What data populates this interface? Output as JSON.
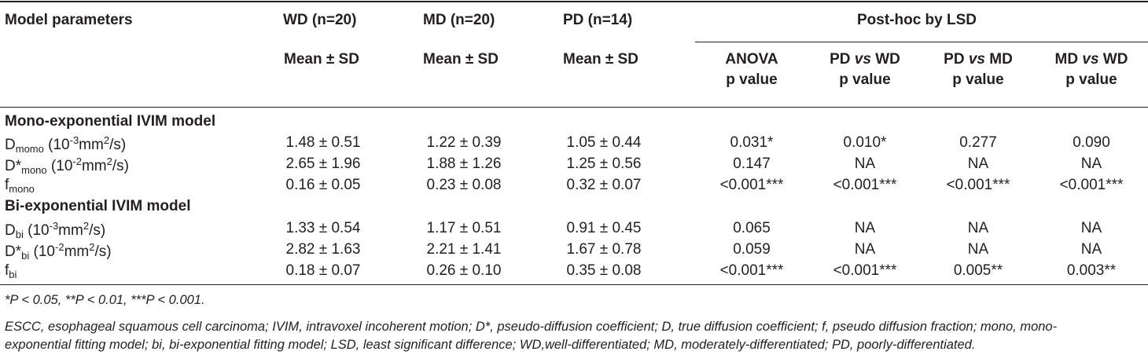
{
  "header": {
    "col0": "Model parameters",
    "wd": "WD (n=20)",
    "md": "MD (n=20)",
    "pd": "PD (n=14)",
    "posthoc": "Post-hoc by LSD",
    "mean_sd": "Mean ± SD",
    "anova_line1": "ANOVA",
    "anova_line2": "p value",
    "pd_wd_a": "PD ",
    "pd_wd_vs": "vs",
    "pd_wd_b": " WD",
    "pd_md_a": "PD ",
    "pd_md_vs": "vs",
    "pd_md_b": " MD",
    "md_wd_a": "MD ",
    "md_wd_vs": "vs",
    "md_wd_b": " WD",
    "p_value": "p value"
  },
  "sections": {
    "mono": "Mono-exponential IVIM model",
    "bi": "Bi-exponential IVIM model"
  },
  "labels": {
    "dmono_base": "D",
    "dmono_sub": "momo",
    "dmono_unit_a": " (10",
    "dmono_unit_sup": "-3",
    "dmono_unit_b": "mm",
    "dmono_unit_sup2": "2",
    "dmono_unit_c": "/s)",
    "dstarmono_base": "D*",
    "dstarmono_sub": "mono",
    "dstarmono_unit_a": " (10",
    "dstarmono_unit_sup": "-2",
    "dstarmono_unit_b": "mm",
    "dstarmono_unit_sup2": "2",
    "dstarmono_unit_c": "/s)",
    "fmono_base": "f",
    "fmono_sub": "mono",
    "dbi_base": "D",
    "dbi_sub": "bi",
    "dbi_unit_a": " (10",
    "dbi_unit_sup": "-3",
    "dbi_unit_b": "mm",
    "dbi_unit_sup2": "2",
    "dbi_unit_c": "/s)",
    "dstarbi_base": "D*",
    "dstarbi_sub": "bi",
    "dstarbi_unit_a": " (10",
    "dstarbi_unit_sup": "-2",
    "dstarbi_unit_b": "mm",
    "dstarbi_unit_sup2": "2",
    "dstarbi_unit_c": "/s)",
    "fbi_base": "f",
    "fbi_sub": "bi"
  },
  "rows": [
    [
      "1.48 ± 0.51",
      "1.22 ± 0.39",
      "1.05 ± 0.44",
      "0.031*",
      "0.010*",
      "0.277",
      "0.090"
    ],
    [
      "2.65 ± 1.96",
      "1.88 ± 1.26",
      "1.25 ± 0.56",
      "0.147",
      "NA",
      "NA",
      "NA"
    ],
    [
      "0.16 ± 0.05",
      "0.23 ± 0.08",
      "0.32 ± 0.07",
      "<0.001***",
      "<0.001***",
      "<0.001***",
      "<0.001***"
    ],
    [
      "1.33 ± 0.54",
      "1.17 ± 0.51",
      "0.91 ± 0.45",
      "0.065",
      "NA",
      "NA",
      "NA"
    ],
    [
      "2.82 ± 1.63",
      "2.21 ± 1.41",
      "1.67 ± 0.78",
      "0.059",
      "NA",
      "NA",
      "NA"
    ],
    [
      "0.18 ± 0.07",
      "0.26 ± 0.10",
      "0.35 ± 0.08",
      "<0.001***",
      "<0.001***",
      "0.005**",
      "0.003**"
    ]
  ],
  "footnotes": {
    "sig": "*P < 0.05, **P < 0.01, ***P < 0.001.",
    "abbr_line1": "ESCC, esophageal squamous cell carcinoma; IVIM, intravoxel incoherent motion; D*, pseudo-diffusion coefficient; D, true diffusion coefficient; f, pseudo diffusion fraction; mono, mono-",
    "abbr_line2": "exponential fitting model; bi, bi-exponential fitting model; LSD, least significant difference; WD,well-differentiated; MD, moderately-differentiated; PD, poorly-differentiated."
  }
}
